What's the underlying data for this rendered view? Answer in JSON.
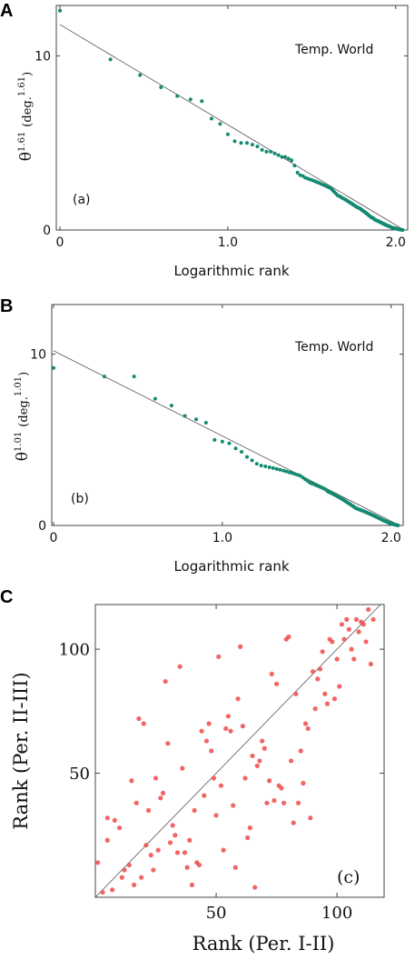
{
  "chart_data": [
    {
      "panel_label": "A",
      "type": "scatter",
      "annotation": "Temp. World",
      "panel_tag": "(a)",
      "ylabel_main": "θ",
      "ylabel_exp": "1.61",
      "ylabel_unit": "(deg.",
      "ylabel_unit_exp": "1.61",
      "ylabel_close": ")",
      "xlabel": "Logarithmic rank",
      "xlim": [
        0,
        2.05
      ],
      "ylim": [
        0,
        12.9
      ],
      "xticks": [
        {
          "v": 0,
          "label": "0"
        },
        {
          "v": 1,
          "label": "1.0"
        },
        {
          "v": 2,
          "label": "2.0"
        }
      ],
      "yticks": [
        {
          "v": 0,
          "label": "0"
        },
        {
          "v": 10,
          "label": "10"
        }
      ],
      "fit_line": [
        [
          0,
          11.8
        ],
        [
          2.05,
          0
        ]
      ],
      "point_color": "#138a72",
      "x": [
        0,
        0.301,
        0.477,
        0.602,
        0.699,
        0.778,
        0.845,
        0.903,
        0.954,
        1.0,
        1.041,
        1.079,
        1.114,
        1.146,
        1.176,
        1.204,
        1.23,
        1.255,
        1.279,
        1.301,
        1.322,
        1.342,
        1.362,
        1.38,
        1.398,
        1.415,
        1.431,
        1.447,
        1.462,
        1.477,
        1.491,
        1.505,
        1.519,
        1.531,
        1.544,
        1.556,
        1.568,
        1.58,
        1.591,
        1.602,
        1.613,
        1.623,
        1.633,
        1.643,
        1.653,
        1.663,
        1.672,
        1.681,
        1.69,
        1.699,
        1.708,
        1.716,
        1.724,
        1.732,
        1.74,
        1.748,
        1.756,
        1.763,
        1.771,
        1.778,
        1.785,
        1.792,
        1.799,
        1.806,
        1.813,
        1.82,
        1.826,
        1.833,
        1.839,
        1.845,
        1.851,
        1.857,
        1.863,
        1.869,
        1.875,
        1.881,
        1.886,
        1.892,
        1.898,
        1.903,
        1.908,
        1.914,
        1.919,
        1.924,
        1.929,
        1.934,
        1.94,
        1.944,
        1.949,
        1.954,
        1.959,
        1.964,
        1.968,
        1.973,
        1.978,
        1.982,
        1.987,
        1.991,
        1.996,
        2.0,
        2.004,
        2.009,
        2.013,
        2.017,
        2.021,
        2.025,
        2.029,
        2.033,
        2.037,
        2.041
      ],
      "y": [
        12.6,
        9.8,
        8.9,
        8.2,
        7.7,
        7.5,
        7.4,
        6.4,
        6.1,
        5.5,
        5.1,
        5.0,
        5.0,
        4.9,
        4.8,
        4.6,
        4.5,
        4.5,
        4.4,
        4.3,
        4.2,
        4.2,
        4.1,
        4.0,
        3.7,
        3.3,
        3.15,
        3.1,
        3.0,
        2.95,
        2.9,
        2.85,
        2.8,
        2.75,
        2.7,
        2.65,
        2.6,
        2.55,
        2.5,
        2.45,
        2.4,
        2.3,
        2.2,
        2.1,
        2.0,
        1.95,
        1.9,
        1.85,
        1.8,
        1.75,
        1.7,
        1.65,
        1.6,
        1.55,
        1.5,
        1.45,
        1.4,
        1.35,
        1.3,
        1.28,
        1.25,
        1.2,
        1.15,
        1.1,
        1.05,
        1.0,
        0.95,
        0.9,
        0.85,
        0.8,
        0.75,
        0.72,
        0.7,
        0.65,
        0.6,
        0.57,
        0.55,
        0.52,
        0.5,
        0.47,
        0.45,
        0.42,
        0.4,
        0.37,
        0.35,
        0.32,
        0.3,
        0.28,
        0.26,
        0.24,
        0.22,
        0.2,
        0.18,
        0.16,
        0.14,
        0.12,
        0.11,
        0.1,
        0.09,
        0.08,
        0.07,
        0.06,
        0.05,
        0.04,
        0.03,
        0.03,
        0.02,
        0.02,
        0.01,
        0.0
      ]
    },
    {
      "panel_label": "B",
      "type": "scatter",
      "annotation": "Temp. World",
      "panel_tag": "(b)",
      "ylabel_main": "θ",
      "ylabel_exp": "1.01",
      "ylabel_unit": "(deg.",
      "ylabel_unit_exp": "1.01",
      "ylabel_close": ")",
      "xlabel": "Logarithmic rank",
      "xlim": [
        0,
        2.05
      ],
      "ylim": [
        0,
        12.9
      ],
      "xticks": [
        {
          "v": 0,
          "label": "0"
        },
        {
          "v": 1,
          "label": "1.0"
        },
        {
          "v": 2,
          "label": "2.0"
        }
      ],
      "yticks": [
        {
          "v": 0,
          "label": "0"
        },
        {
          "v": 10,
          "label": "10"
        }
      ],
      "fit_line": [
        [
          0,
          10.2
        ],
        [
          2.05,
          0
        ]
      ],
      "point_color": "#138a72",
      "x": [
        0,
        0.301,
        0.477,
        0.602,
        0.699,
        0.778,
        0.845,
        0.903,
        0.954,
        1.0,
        1.041,
        1.079,
        1.114,
        1.146,
        1.176,
        1.204,
        1.23,
        1.255,
        1.279,
        1.301,
        1.322,
        1.342,
        1.362,
        1.38,
        1.398,
        1.415,
        1.431,
        1.447,
        1.462,
        1.477,
        1.491,
        1.505,
        1.519,
        1.531,
        1.544,
        1.556,
        1.568,
        1.58,
        1.591,
        1.602,
        1.613,
        1.623,
        1.633,
        1.643,
        1.653,
        1.663,
        1.672,
        1.681,
        1.69,
        1.699,
        1.708,
        1.716,
        1.724,
        1.732,
        1.74,
        1.748,
        1.756,
        1.763,
        1.771,
        1.778,
        1.785,
        1.792,
        1.799,
        1.806,
        1.813,
        1.82,
        1.826,
        1.833,
        1.839,
        1.845,
        1.851,
        1.857,
        1.863,
        1.869,
        1.875,
        1.881,
        1.886,
        1.892,
        1.898,
        1.903,
        1.908,
        1.914,
        1.919,
        1.924,
        1.929,
        1.934,
        1.94,
        1.944,
        1.949,
        1.954,
        1.959,
        1.964,
        1.968,
        1.973,
        1.978,
        1.982,
        1.987,
        1.991,
        1.996,
        2.0,
        2.004,
        2.009,
        2.013,
        2.017,
        2.021,
        2.025,
        2.029,
        2.033,
        2.037,
        2.041
      ],
      "y": [
        9.2,
        8.7,
        8.7,
        7.4,
        7.0,
        6.4,
        6.2,
        6.0,
        5.0,
        4.9,
        4.8,
        4.5,
        4.3,
        4.0,
        3.8,
        3.6,
        3.5,
        3.45,
        3.4,
        3.35,
        3.3,
        3.25,
        3.2,
        3.15,
        3.1,
        3.05,
        3.0,
        2.95,
        2.9,
        2.8,
        2.7,
        2.6,
        2.5,
        2.45,
        2.4,
        2.35,
        2.3,
        2.25,
        2.2,
        2.15,
        2.1,
        2.0,
        1.95,
        1.9,
        1.85,
        1.8,
        1.75,
        1.7,
        1.65,
        1.6,
        1.55,
        1.5,
        1.45,
        1.4,
        1.35,
        1.3,
        1.25,
        1.2,
        1.15,
        1.1,
        1.05,
        1.0,
        0.98,
        0.95,
        0.92,
        0.9,
        0.87,
        0.85,
        0.82,
        0.8,
        0.77,
        0.75,
        0.72,
        0.7,
        0.67,
        0.65,
        0.62,
        0.6,
        0.57,
        0.55,
        0.52,
        0.5,
        0.47,
        0.45,
        0.42,
        0.4,
        0.37,
        0.35,
        0.32,
        0.3,
        0.28,
        0.26,
        0.24,
        0.22,
        0.2,
        0.18,
        0.16,
        0.14,
        0.12,
        0.1,
        0.09,
        0.08,
        0.07,
        0.06,
        0.05,
        0.04,
        0.03,
        0.02,
        0.01,
        0.0
      ]
    },
    {
      "panel_label": "C",
      "type": "scatter",
      "panel_tag": "(c)",
      "xlabel": "Rank (Per. I-II)",
      "ylabel": "Rank (Per. II-III)",
      "xlim": [
        0,
        118
      ],
      "ylim": [
        0,
        118
      ],
      "xticks": [
        {
          "v": 50,
          "label": "50"
        },
        {
          "v": 100,
          "label": "100"
        }
      ],
      "yticks": [
        {
          "v": 50,
          "label": "50"
        },
        {
          "v": 100,
          "label": "100"
        }
      ],
      "fit_line": [
        [
          0,
          0
        ],
        [
          118,
          118
        ]
      ],
      "point_color": "#f04a4a",
      "x": [
        1,
        3,
        5,
        5,
        7,
        8,
        10,
        11,
        12,
        14,
        15,
        16,
        17,
        18,
        19,
        20,
        21,
        22,
        23,
        24,
        25,
        26,
        27,
        28,
        29,
        30,
        31,
        32,
        33,
        34,
        35,
        36,
        37,
        38,
        39,
        40,
        41,
        42,
        43,
        44,
        45,
        46,
        47,
        48,
        49,
        50,
        51,
        52,
        53,
        54,
        55,
        56,
        57,
        58,
        59,
        60,
        61,
        62,
        63,
        64,
        65,
        66,
        67,
        68,
        69,
        70,
        71,
        72,
        73,
        74,
        75,
        76,
        77,
        78,
        79,
        80,
        81,
        82,
        83,
        84,
        85,
        86,
        87,
        88,
        89,
        90,
        91,
        92,
        93,
        94,
        95,
        96,
        97,
        98,
        99,
        100,
        101,
        102,
        103,
        104,
        105,
        106,
        107,
        108,
        109,
        110,
        111,
        112,
        113,
        114,
        115
      ],
      "y": [
        14,
        2,
        23,
        32,
        3,
        31,
        28,
        8,
        11,
        13,
        47,
        5,
        38,
        72,
        8,
        70,
        21,
        35,
        17,
        11,
        48,
        19,
        40,
        42,
        87,
        62,
        22,
        29,
        25,
        18,
        93,
        52,
        18,
        12,
        23,
        5,
        35,
        14,
        13,
        67,
        41,
        63,
        70,
        59,
        48,
        33,
        97,
        45,
        19,
        68,
        73,
        67,
        37,
        12,
        80,
        101,
        69,
        48,
        24,
        28,
        57,
        4,
        53,
        55,
        63,
        60,
        38,
        47,
        90,
        39,
        86,
        45,
        44,
        38,
        104,
        105,
        55,
        30,
        82,
        38,
        59,
        46,
        70,
        68,
        32,
        91,
        76,
        88,
        92,
        99,
        82,
        78,
        104,
        103,
        80,
        96,
        85,
        110,
        104,
        112,
        108,
        100,
        96,
        112,
        107,
        111,
        110,
        103,
        116,
        94,
        112
      ]
    }
  ]
}
